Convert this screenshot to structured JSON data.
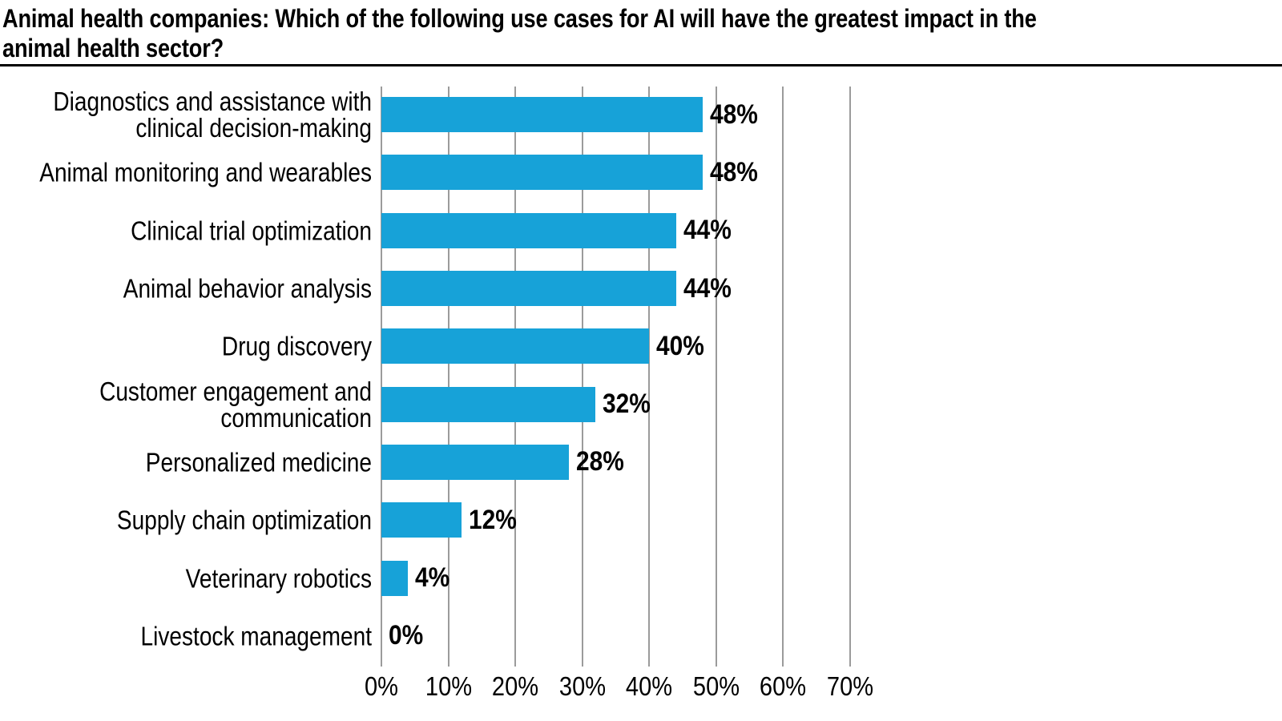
{
  "title": "Animal health companies: Which of the following use cases for AI will have the greatest impact in the\nanimal health sector?",
  "colors": {
    "bar": "#17a2d8",
    "gridline": "#9b9b9b",
    "title_rule": "#000000",
    "text": "#000000"
  },
  "chart_data": {
    "type": "bar",
    "orientation": "horizontal",
    "title": "Animal health companies: Which of the following use cases for AI will have the greatest impact in the animal health sector?",
    "categories": [
      "Diagnostics and assistance with\nclinical decision-making",
      "Animal monitoring and wearables",
      "Clinical trial optimization",
      "Animal behavior analysis",
      "Drug discovery",
      "Customer engagement and\ncommunication",
      "Personalized medicine",
      "Supply chain optimization",
      "Veterinary robotics",
      "Livestock management"
    ],
    "values": [
      48,
      48,
      44,
      44,
      40,
      32,
      28,
      12,
      4,
      0
    ],
    "value_labels": [
      "48%",
      "48%",
      "44%",
      "44%",
      "40%",
      "32%",
      "28%",
      "12%",
      "4%",
      "0%"
    ],
    "x_ticks": [
      "0%",
      "10%",
      "20%",
      "30%",
      "40%",
      "50%",
      "60%",
      "70%"
    ],
    "xlim": [
      0,
      70
    ],
    "xlabel": "",
    "ylabel": "",
    "grid": true,
    "legend": "none",
    "bar_color": "#17a2d8"
  }
}
